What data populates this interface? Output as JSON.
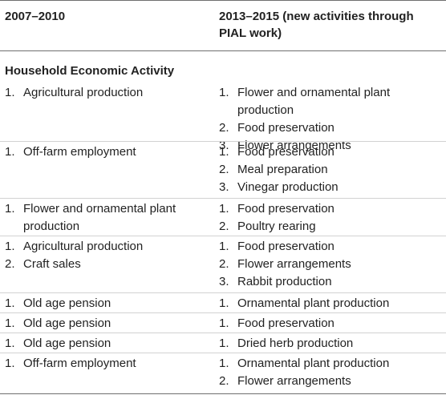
{
  "header": {
    "col1": "2007–2010",
    "col2": "2013–2015 (new activities through PIAL work)"
  },
  "section_label": "Household Economic Activity",
  "rows": [
    {
      "left": [
        {
          "n": "1.",
          "t": "Agricultural production"
        }
      ],
      "right": [
        {
          "n": "1.",
          "t": "Flower and ornamental plant production"
        },
        {
          "n": "2.",
          "t": "Food preservation"
        },
        {
          "n": "3.",
          "t": "Flower arrangements"
        }
      ]
    },
    {
      "left": [
        {
          "n": "1.",
          "t": "Off-farm employment"
        }
      ],
      "right": [
        {
          "n": "1.",
          "t": "Food preservation"
        },
        {
          "n": "2.",
          "t": "Meal preparation"
        },
        {
          "n": "3.",
          "t": "Vinegar production"
        }
      ]
    },
    {
      "left": [
        {
          "n": "1.",
          "t": "Flower and ornamental plant production"
        }
      ],
      "right": [
        {
          "n": "1.",
          "t": "Food preservation"
        },
        {
          "n": "2.",
          "t": "Poultry rearing"
        }
      ]
    },
    {
      "left": [
        {
          "n": "1.",
          "t": "Agricultural production"
        },
        {
          "n": "2.",
          "t": "Craft sales"
        }
      ],
      "right": [
        {
          "n": "1.",
          "t": "Food preservation"
        },
        {
          "n": "2.",
          "t": "Flower arrangements"
        },
        {
          "n": "3.",
          "t": "Rabbit production"
        }
      ]
    },
    {
      "left": [
        {
          "n": "1.",
          "t": "Old age pension"
        }
      ],
      "right": [
        {
          "n": "1.",
          "t": "Ornamental plant production"
        }
      ]
    },
    {
      "left": [
        {
          "n": "1.",
          "t": "Old age pension"
        }
      ],
      "right": [
        {
          "n": "1.",
          "t": "Food preservation"
        }
      ]
    },
    {
      "left": [
        {
          "n": "1.",
          "t": "Old age pension"
        }
      ],
      "right": [
        {
          "n": "1.",
          "t": "Dried herb production"
        }
      ]
    },
    {
      "left": [
        {
          "n": "1.",
          "t": "Off-farm employment"
        }
      ],
      "right": [
        {
          "n": "1.",
          "t": "Ornamental plant production"
        },
        {
          "n": "2.",
          "t": "Flower arrangements"
        }
      ]
    }
  ]
}
